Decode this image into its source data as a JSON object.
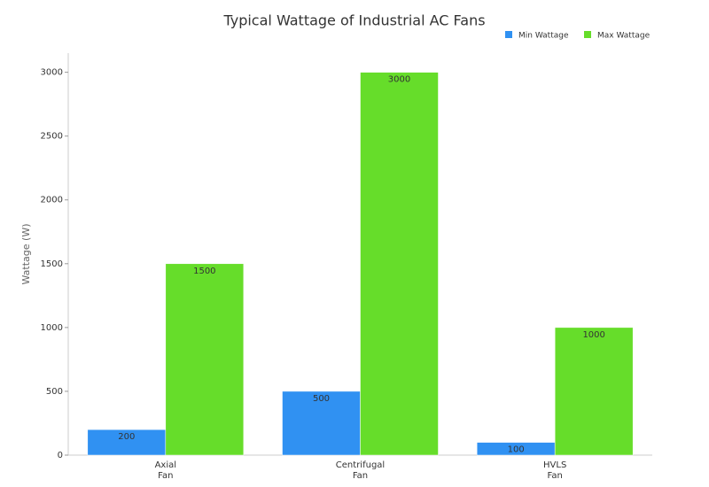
{
  "chart_data": {
    "type": "bar",
    "title": "Typical Wattage of Industrial AC Fans",
    "y_label": "Wattage (W)",
    "categories": [
      "Axial Fan",
      "Centrifugal Fan",
      "HVLS Fan"
    ],
    "series": [
      {
        "name": "Min Wattage",
        "color": "#3091f2",
        "values": [
          200,
          500,
          100
        ]
      },
      {
        "name": "Max Wattage",
        "color": "#66dd2a",
        "values": [
          1500,
          3000,
          1000
        ]
      }
    ],
    "ylim": [
      0,
      3150
    ],
    "yticks": [
      0,
      500,
      1000,
      1500,
      2000,
      2500,
      3000
    ],
    "legend": "top-right",
    "grid": false
  }
}
